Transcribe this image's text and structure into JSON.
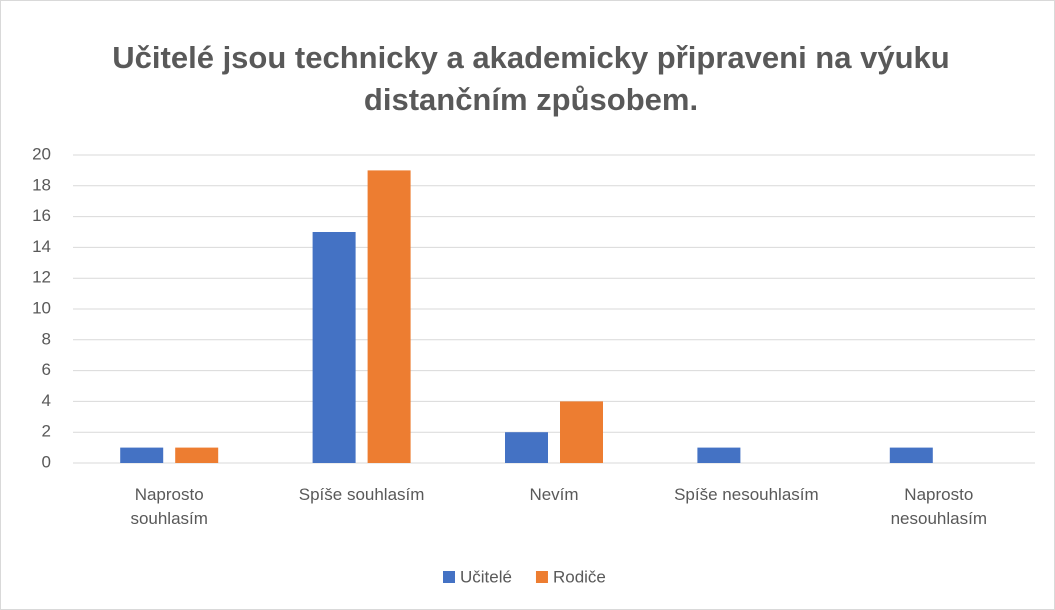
{
  "chart_data": {
    "type": "bar",
    "title": "Učitelé jsou technicky a akademicky připraveni na výuku distančním způsobem.",
    "categories": [
      "Naprosto\nsouhlasím",
      "Spíše souhlasím",
      "Nevím",
      "Spíše nesouhlasím",
      "Naprosto\nnesouhlasím"
    ],
    "series": [
      {
        "name": "Učitelé",
        "color": "#4472c4",
        "values": [
          1,
          15,
          2,
          1,
          1
        ]
      },
      {
        "name": "Rodiče",
        "color": "#ed7d31",
        "values": [
          1,
          19,
          4,
          0,
          0
        ]
      }
    ],
    "ylim": [
      0,
      20
    ],
    "yticks": [
      0,
      2,
      4,
      6,
      8,
      10,
      12,
      14,
      16,
      18,
      20
    ],
    "grid": true,
    "legend": "bottom"
  }
}
